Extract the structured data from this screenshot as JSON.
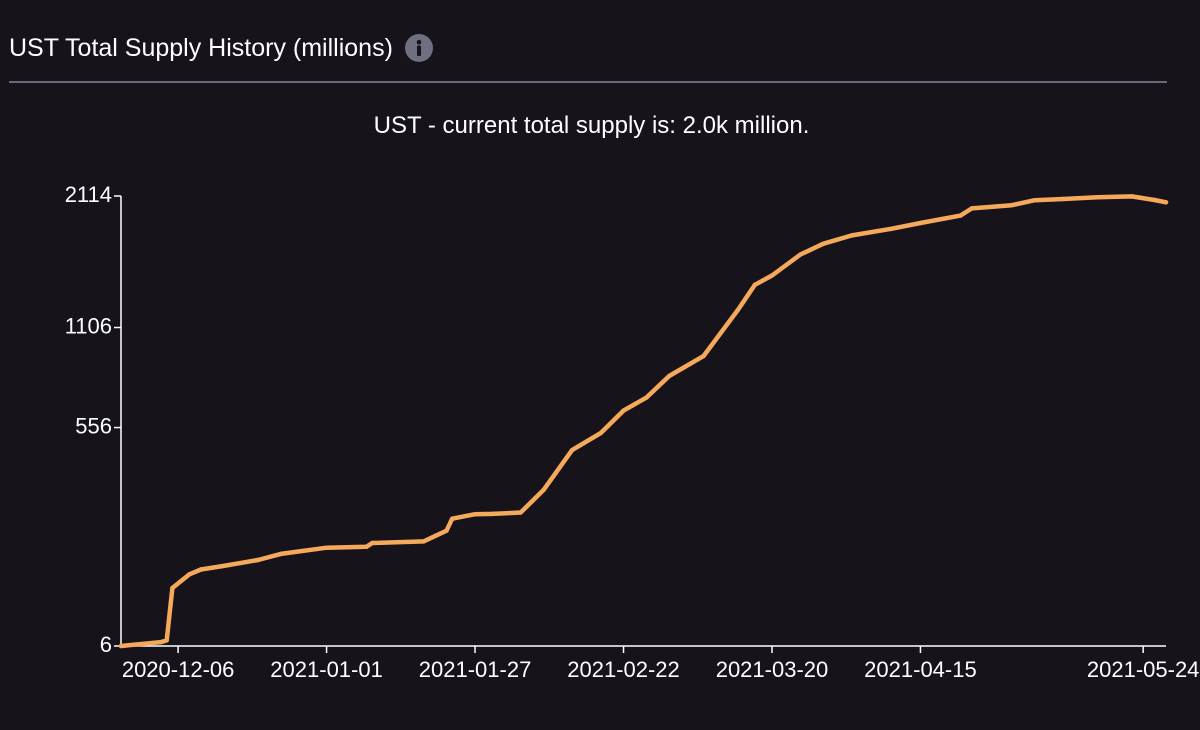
{
  "header": {
    "title": "UST Total Supply History (millions)",
    "info_icon": "info-icon"
  },
  "chart_data": {
    "type": "line",
    "title": "UST - current total supply is: 2.0k million.",
    "xlabel": "",
    "ylabel": "",
    "ylim": [
      6,
      2114
    ],
    "yscale": "sqrt",
    "y_ticks": [
      6,
      556,
      1106,
      2114
    ],
    "x_ticks": [
      "2020-12-06",
      "2021-01-01",
      "2021-01-27",
      "2021-02-22",
      "2021-03-20",
      "2021-04-15",
      "2021-05-24"
    ],
    "x_start": "2020-11-26",
    "x_end": "2021-05-28",
    "line_color": "#f5a95b",
    "series": [
      {
        "name": "UST Total Supply",
        "x": [
          "2020-11-26",
          "2020-12-03",
          "2020-12-04",
          "2020-12-05",
          "2020-12-08",
          "2020-12-10",
          "2020-12-14",
          "2020-12-20",
          "2020-12-24",
          "2021-01-01",
          "2021-01-08",
          "2021-01-09",
          "2021-01-18",
          "2021-01-22",
          "2021-01-23",
          "2021-01-27",
          "2021-01-30",
          "2021-02-04",
          "2021-02-08",
          "2021-02-13",
          "2021-02-18",
          "2021-02-22",
          "2021-02-26",
          "2021-03-02",
          "2021-03-08",
          "2021-03-14",
          "2021-03-17",
          "2021-03-20",
          "2021-03-25",
          "2021-03-29",
          "2021-04-03",
          "2021-04-10",
          "2021-04-15",
          "2021-04-22",
          "2021-04-24",
          "2021-05-01",
          "2021-05-05",
          "2021-05-10",
          "2021-05-16",
          "2021-05-22",
          "2021-05-26",
          "2021-05-28"
        ],
        "values": [
          6,
          8,
          9,
          65,
          88,
          97,
          104,
          116,
          129,
          143,
          145,
          154,
          158,
          185,
          218,
          231,
          232,
          236,
          308,
          458,
          531,
          636,
          701,
          816,
          930,
          1220,
          1398,
          1466,
          1626,
          1711,
          1778,
          1833,
          1881,
          1943,
          2005,
          2033,
          2077,
          2087,
          2103,
          2110,
          2079,
          2058
        ]
      }
    ]
  }
}
